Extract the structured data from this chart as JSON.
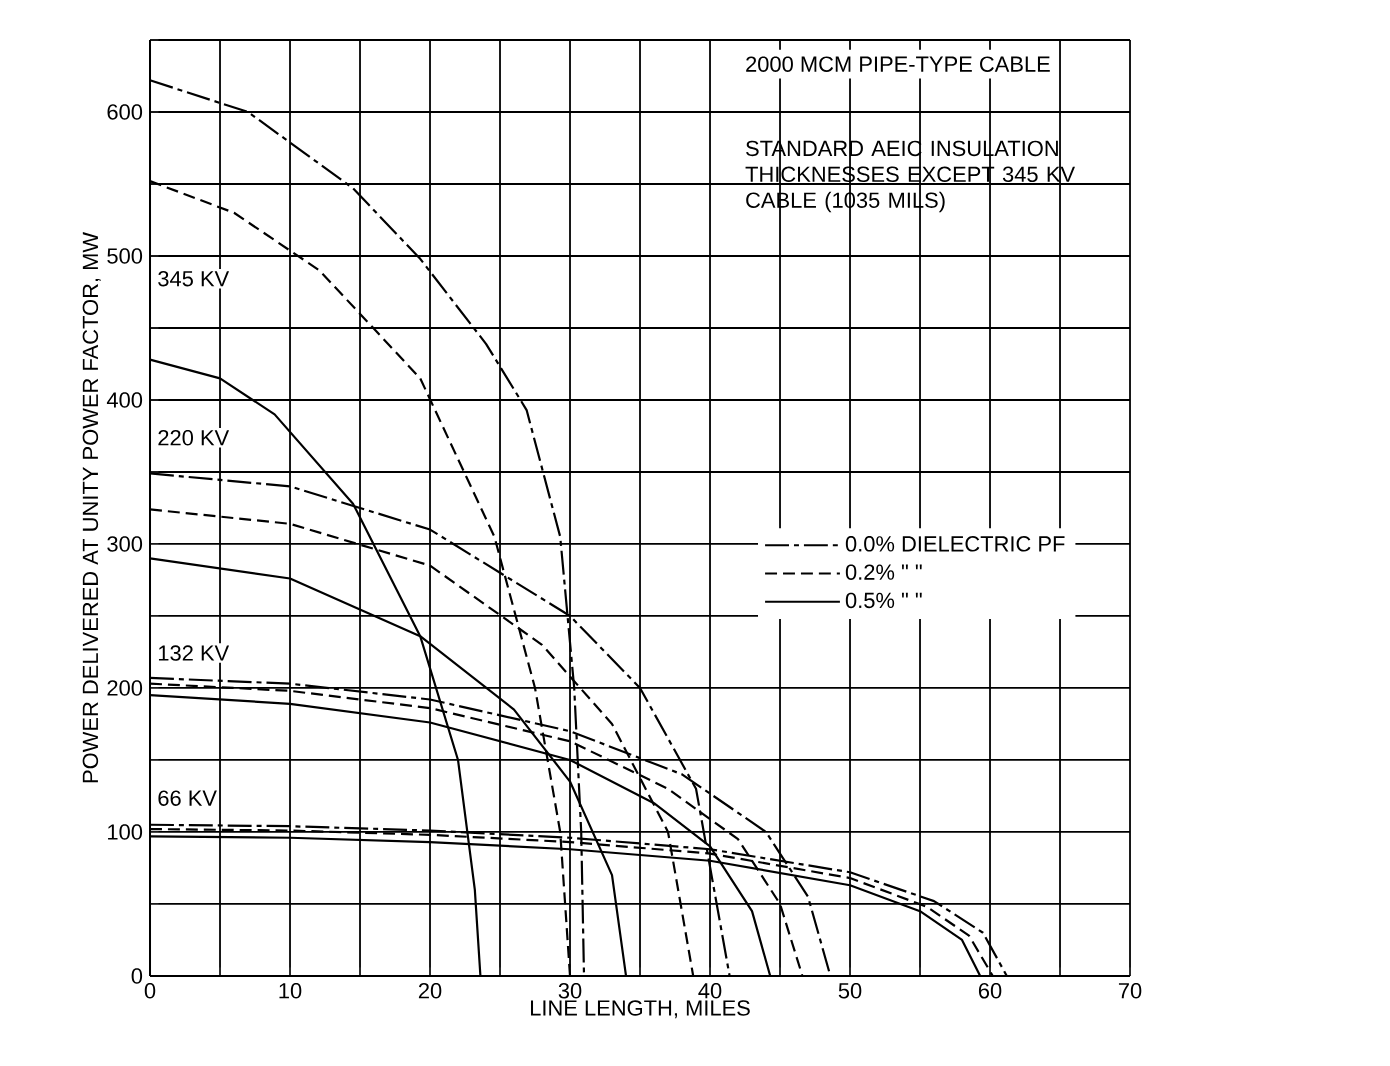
{
  "chart_data": {
    "type": "line",
    "title": "2000 MCM PIPE-TYPE CABLE",
    "subtitle": "STANDARD AEIC INSULATION THICKNESSES EXCEPT 345 KV CABLE (1035 MILS)",
    "xlabel": "LINE LENGTH, MILES",
    "ylabel": "POWER DELIVERED AT UNITY POWER FACTOR, MW",
    "xlim": [
      0,
      70
    ],
    "ylim": [
      0,
      650
    ],
    "xticks": [
      0,
      {
        "value": 5,
        "label": null
      },
      10,
      {
        "value": 15,
        "label": null
      },
      20,
      {
        "value": 25,
        "label": null
      },
      30,
      {
        "value": 35,
        "label": null
      },
      40,
      {
        "value": 45,
        "label": null
      },
      50,
      {
        "value": 55,
        "label": null
      },
      60,
      {
        "value": 65,
        "label": null
      },
      70
    ],
    "yticks": [
      0,
      {
        "value": 50,
        "label": null
      },
      100,
      {
        "value": 150,
        "label": null
      },
      200,
      {
        "value": 250,
        "label": null
      },
      300,
      {
        "value": 350,
        "label": null
      },
      400,
      {
        "value": 450,
        "label": null
      },
      500,
      {
        "value": 550,
        "label": null
      },
      600,
      {
        "value": 650,
        "label": null
      }
    ],
    "grid": true,
    "legend": "right",
    "marker": "none",
    "series": [
      {
        "name": "0.0% DIELECTRIC PF",
        "color": "#000000",
        "line_style": "dashdot",
        "x": [
          0,
          7,
          14.5,
          19.3,
          24,
          26.9,
          29.3,
          30.3,
          30.8,
          31
        ],
        "values": [
          622,
          600,
          547,
          498,
          439,
          393,
          305,
          200,
          100,
          0
        ]
      },
      {
        "name": "0.2%    \"    \"",
        "color": "#000000",
        "line_style": "dashed",
        "x": [
          0,
          6,
          12.1,
          19.3,
          24.6,
          27.5,
          29.3,
          30
        ],
        "values": [
          552,
          530,
          490,
          415,
          305,
          200,
          100,
          0
        ]
      },
      {
        "name": "0.5%    \"    \"",
        "color": "#000000",
        "line_style": "solid",
        "x": [
          0,
          5,
          8.9,
          14.5,
          19.3,
          22,
          23.2,
          23.6
        ],
        "values": [
          428,
          415,
          390,
          328,
          236,
          150,
          60,
          0
        ]
      },
      {
        "color": "#000000",
        "line_style": "dashdot",
        "x": [
          0,
          10,
          20,
          30,
          35,
          39,
          41.4
        ],
        "values": [
          349,
          340,
          310,
          250,
          200,
          130,
          0
        ]
      },
      {
        "color": "#000000",
        "line_style": "dashed",
        "x": [
          0,
          10,
          20,
          28,
          33,
          37,
          38.8
        ],
        "values": [
          324,
          314,
          285,
          230,
          175,
          100,
          0
        ]
      },
      {
        "color": "#000000",
        "line_style": "solid",
        "x": [
          0,
          10,
          19.3,
          26,
          30,
          33,
          34
        ],
        "values": [
          290,
          276,
          236,
          185,
          135,
          70,
          0
        ]
      },
      {
        "color": "#000000",
        "line_style": "dashdot",
        "x": [
          0,
          10,
          20,
          30,
          38,
          44,
          47,
          48.6
        ],
        "values": [
          207,
          203,
          192,
          170,
          140,
          100,
          55,
          0
        ]
      },
      {
        "color": "#000000",
        "line_style": "dashed",
        "x": [
          0,
          10,
          20,
          30,
          37,
          42,
          45,
          46.6
        ],
        "values": [
          203,
          198,
          186,
          163,
          130,
          95,
          50,
          0
        ]
      },
      {
        "color": "#000000",
        "line_style": "solid",
        "x": [
          0,
          10,
          20,
          30,
          36,
          40,
          43,
          44.3
        ],
        "values": [
          195,
          189,
          176,
          150,
          120,
          90,
          45,
          0
        ]
      },
      {
        "color": "#000000",
        "line_style": "dashdot",
        "x": [
          0,
          10,
          20,
          30,
          40,
          50,
          56,
          59.5,
          61.2
        ],
        "values": [
          105,
          104,
          101,
          96,
          88,
          72,
          52,
          30,
          0
        ]
      },
      {
        "color": "#000000",
        "line_style": "dashed",
        "x": [
          0,
          10,
          20,
          30,
          40,
          50,
          55.5,
          58.5,
          60.2
        ],
        "values": [
          102,
          101,
          98,
          93,
          85,
          68,
          48,
          28,
          0
        ]
      },
      {
        "color": "#000000",
        "line_style": "solid",
        "x": [
          0,
          10,
          20,
          30,
          40,
          50,
          55,
          58,
          59.3
        ],
        "values": [
          97,
          96,
          93,
          88,
          80,
          63,
          45,
          25,
          0
        ]
      }
    ],
    "annotations": [
      "345 KV",
      "220 KV",
      "132 KV",
      "66 KV"
    ]
  }
}
